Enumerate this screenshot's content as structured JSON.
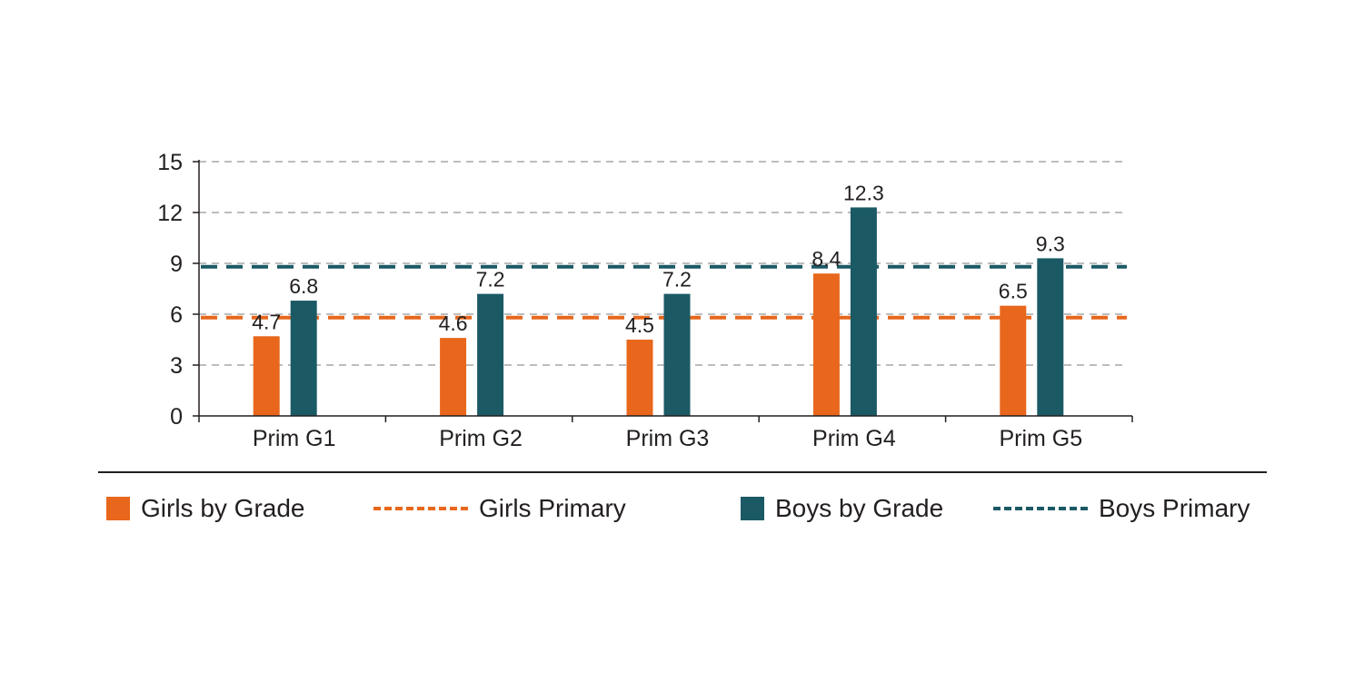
{
  "chart_data": {
    "type": "bar",
    "categories": [
      "Prim G1",
      "Prim G2",
      "Prim G3",
      "Prim G4",
      "Prim G5"
    ],
    "series": [
      {
        "name": "Girls by Grade",
        "values": [
          4.7,
          4.6,
          4.5,
          8.4,
          6.5
        ],
        "color": "#e8671c"
      },
      {
        "name": "Boys by Grade",
        "values": [
          6.8,
          7.2,
          7.2,
          12.3,
          9.3
        ],
        "color": "#1b5a65"
      }
    ],
    "reference_lines": [
      {
        "name": "Girls Primary",
        "value": 5.8,
        "color": "#e8671c",
        "style": "dashed"
      },
      {
        "name": "Boys Primary",
        "value": 8.8,
        "color": "#1b5a65",
        "style": "dashed"
      }
    ],
    "yticks": [
      "0",
      "3",
      "6",
      "9",
      "12",
      "15"
    ],
    "ylim": [
      0,
      15
    ],
    "grid": true,
    "legend_position": "bottom",
    "title": "",
    "xlabel": "",
    "ylabel": ""
  },
  "legend": {
    "girls_by_grade": "Girls by Grade",
    "girls_primary": "Girls Primary",
    "boys_by_grade": "Boys by Grade",
    "boys_primary": "Boys Primary"
  }
}
